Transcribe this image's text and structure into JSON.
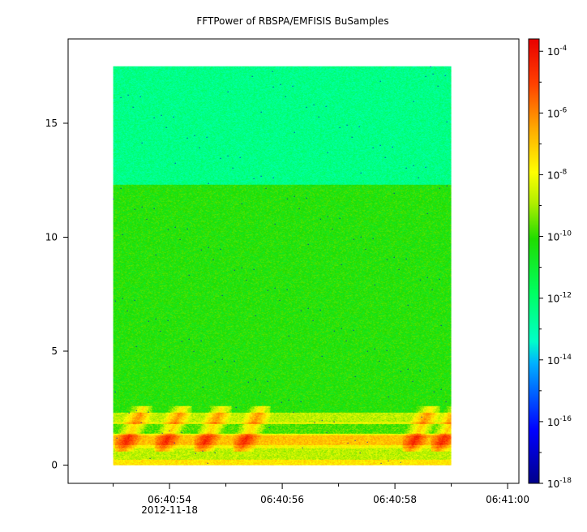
{
  "chart_data": {
    "type": "heatmap",
    "title": "FFTPower of RBSPA/EMFISIS  BuSamples",
    "xlabel": "",
    "ylabel": "",
    "x_ticks": [
      {
        "label": "06:40:54",
        "sublabel": "2012-11-18"
      },
      {
        "label": "06:40:56",
        "sublabel": ""
      },
      {
        "label": "06:40:58",
        "sublabel": ""
      },
      {
        "label": "06:41:00",
        "sublabel": ""
      }
    ],
    "x_minor_ticks_seconds": [
      53,
      55,
      57,
      59
    ],
    "xlim_seconds": [
      52.2,
      60.2
    ],
    "y_ticks": [
      "0",
      "5",
      "10",
      "15"
    ],
    "ylim": [
      -0.8,
      18.7
    ],
    "data_extent": {
      "x_seconds": [
        53.0,
        59.0
      ],
      "y": [
        0,
        17.5
      ]
    },
    "colorbar": {
      "scale": "log",
      "range_exponents": [
        -18,
        -3.6
      ],
      "tick_exponents": [
        -18,
        -16,
        -14,
        -12,
        -10,
        -8,
        -6,
        -4
      ],
      "tick_labels": [
        {
          "base": "10",
          "exp": "-18"
        },
        {
          "base": "10",
          "exp": "-16"
        },
        {
          "base": "10",
          "exp": "-14"
        },
        {
          "base": "10",
          "exp": "-12"
        },
        {
          "base": "10",
          "exp": "-10"
        },
        {
          "base": "10",
          "exp": "-8"
        },
        {
          "base": "10",
          "exp": "-6"
        },
        {
          "base": "10",
          "exp": "-4"
        }
      ]
    },
    "bands": [
      {
        "y_range": [
          12.3,
          17.5
        ],
        "log_power": -12.4
      },
      {
        "y_range": [
          2.3,
          12.3
        ],
        "log_power": -10.2
      },
      {
        "y_range": [
          1.9,
          2.3
        ],
        "log_power": -8.8
      },
      {
        "y_range": [
          1.8,
          1.9
        ],
        "log_power": -8.0
      },
      {
        "y_range": [
          1.4,
          1.8
        ],
        "log_power": -9.8
      },
      {
        "y_range": [
          1.3,
          1.4
        ],
        "log_power": -8.2
      },
      {
        "y_range": [
          0.9,
          1.3
        ],
        "log_power": -7.0
      },
      {
        "y_range": [
          0.75,
          0.9
        ],
        "log_power": -8.0
      },
      {
        "y_range": [
          0.25,
          0.75
        ],
        "log_power": -8.8
      },
      {
        "y_range": [
          0.0,
          0.25
        ],
        "log_power": -7.6
      }
    ],
    "bursts_seconds": [
      53.2,
      53.9,
      54.6,
      55.3,
      58.3,
      58.8
    ]
  }
}
